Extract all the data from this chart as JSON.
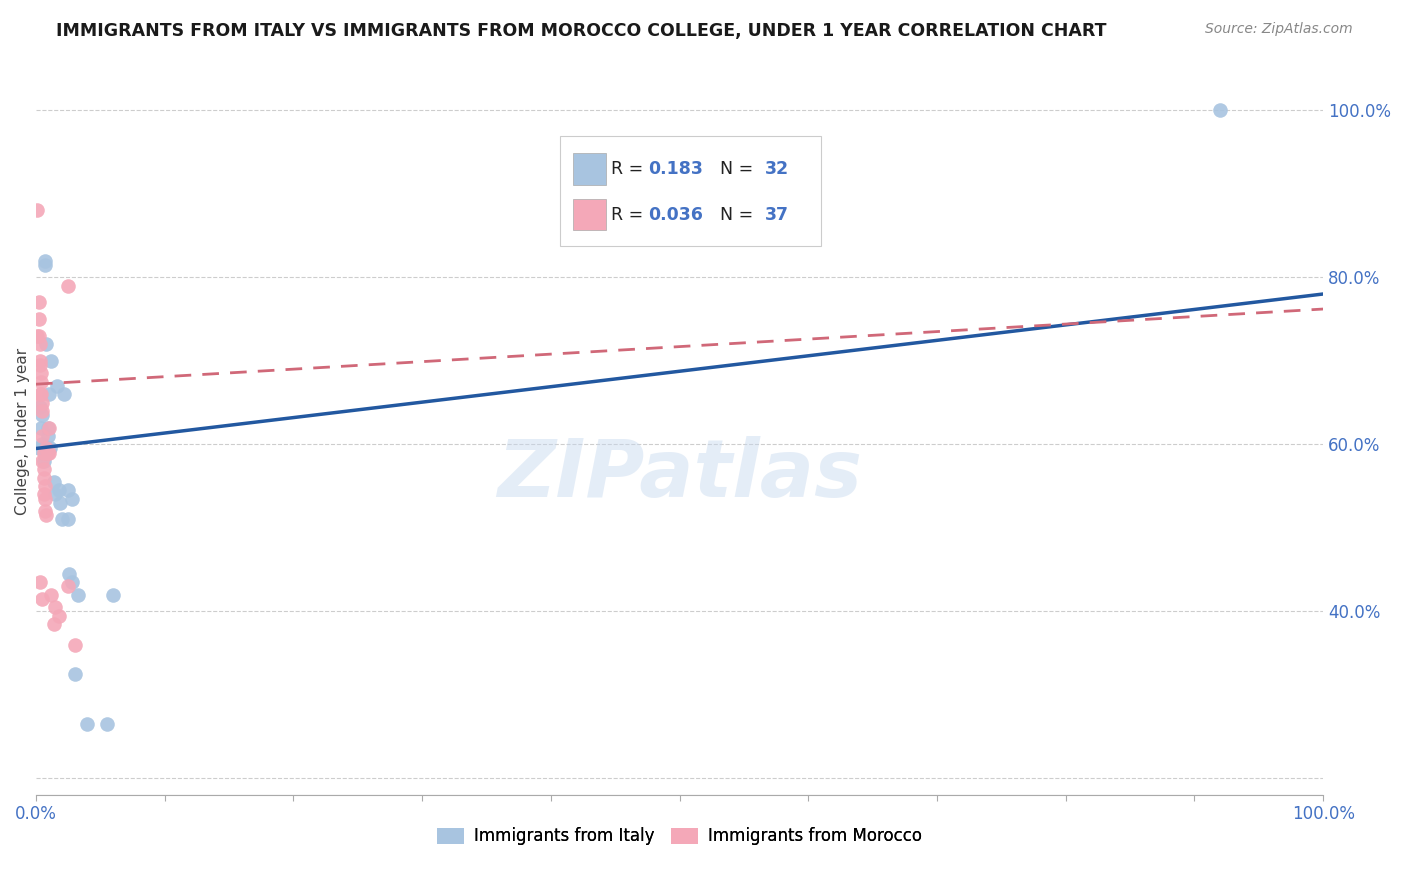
{
  "title": "IMMIGRANTS FROM ITALY VS IMMIGRANTS FROM MOROCCO COLLEGE, UNDER 1 YEAR CORRELATION CHART",
  "source": "Source: ZipAtlas.com",
  "ylabel": "College, Under 1 year",
  "legend_italy": "Immigrants from Italy",
  "legend_morocco": "Immigrants from Morocco",
  "R_italy": "0.183",
  "N_italy": "32",
  "R_morocco": "0.036",
  "N_morocco": "37",
  "italy_color": "#a8c4e0",
  "morocco_color": "#f4a8b8",
  "italy_line_color": "#2258a0",
  "morocco_line_color": "#d06878",
  "bg_color": "#ffffff",
  "grid_color": "#c8c8c8",
  "blue_text": "#4472c4",
  "title_color": "#1a1a1a",
  "source_color": "#888888",
  "italy_x": [
    0.002,
    0.003,
    0.004,
    0.005,
    0.005,
    0.006,
    0.007,
    0.007,
    0.008,
    0.009,
    0.009,
    0.01,
    0.011,
    0.012,
    0.014,
    0.015,
    0.016,
    0.018,
    0.019,
    0.02,
    0.022,
    0.025,
    0.025,
    0.026,
    0.028,
    0.028,
    0.03,
    0.033,
    0.04,
    0.055,
    0.06,
    0.92
  ],
  "italy_y": [
    0.595,
    0.645,
    0.62,
    0.6,
    0.635,
    0.58,
    0.815,
    0.82,
    0.72,
    0.62,
    0.61,
    0.66,
    0.595,
    0.7,
    0.555,
    0.54,
    0.67,
    0.545,
    0.53,
    0.51,
    0.66,
    0.545,
    0.51,
    0.445,
    0.535,
    0.435,
    0.325,
    0.42,
    0.265,
    0.265,
    0.42,
    1.0
  ],
  "morocco_x": [
    0.001,
    0.001,
    0.002,
    0.002,
    0.002,
    0.003,
    0.003,
    0.003,
    0.003,
    0.004,
    0.004,
    0.004,
    0.005,
    0.005,
    0.005,
    0.005,
    0.006,
    0.006,
    0.006,
    0.006,
    0.007,
    0.007,
    0.007,
    0.008,
    0.008,
    0.009,
    0.01,
    0.01,
    0.012,
    0.014,
    0.015,
    0.018,
    0.025,
    0.03,
    0.003,
    0.005,
    0.025
  ],
  "morocco_y": [
    0.88,
    0.73,
    0.77,
    0.75,
    0.73,
    0.72,
    0.7,
    0.66,
    0.695,
    0.685,
    0.675,
    0.66,
    0.65,
    0.64,
    0.61,
    0.58,
    0.59,
    0.57,
    0.56,
    0.54,
    0.55,
    0.535,
    0.52,
    0.515,
    0.595,
    0.59,
    0.62,
    0.59,
    0.42,
    0.385,
    0.405,
    0.395,
    0.79,
    0.36,
    0.435,
    0.415,
    0.43
  ],
  "xlim": [
    0.0,
    1.0
  ],
  "ylim": [
    0.18,
    1.05
  ],
  "italy_line_x0": 0.0,
  "italy_line_y0": 0.595,
  "italy_line_x1": 1.0,
  "italy_line_y1": 0.78,
  "morocco_line_x0": 0.0,
  "morocco_line_y0": 0.672,
  "morocco_line_x1": 1.0,
  "morocco_line_y1": 0.762,
  "x_ticks": [
    0.0,
    0.1,
    0.2,
    0.3,
    0.4,
    0.5,
    0.6,
    0.7,
    0.8,
    0.9,
    1.0
  ],
  "y_ticks": [
    0.2,
    0.4,
    0.6,
    0.8,
    1.0
  ],
  "y_tick_labels_right": [
    "",
    "40.0%",
    "60.0%",
    "80.0%",
    "100.0%"
  ]
}
